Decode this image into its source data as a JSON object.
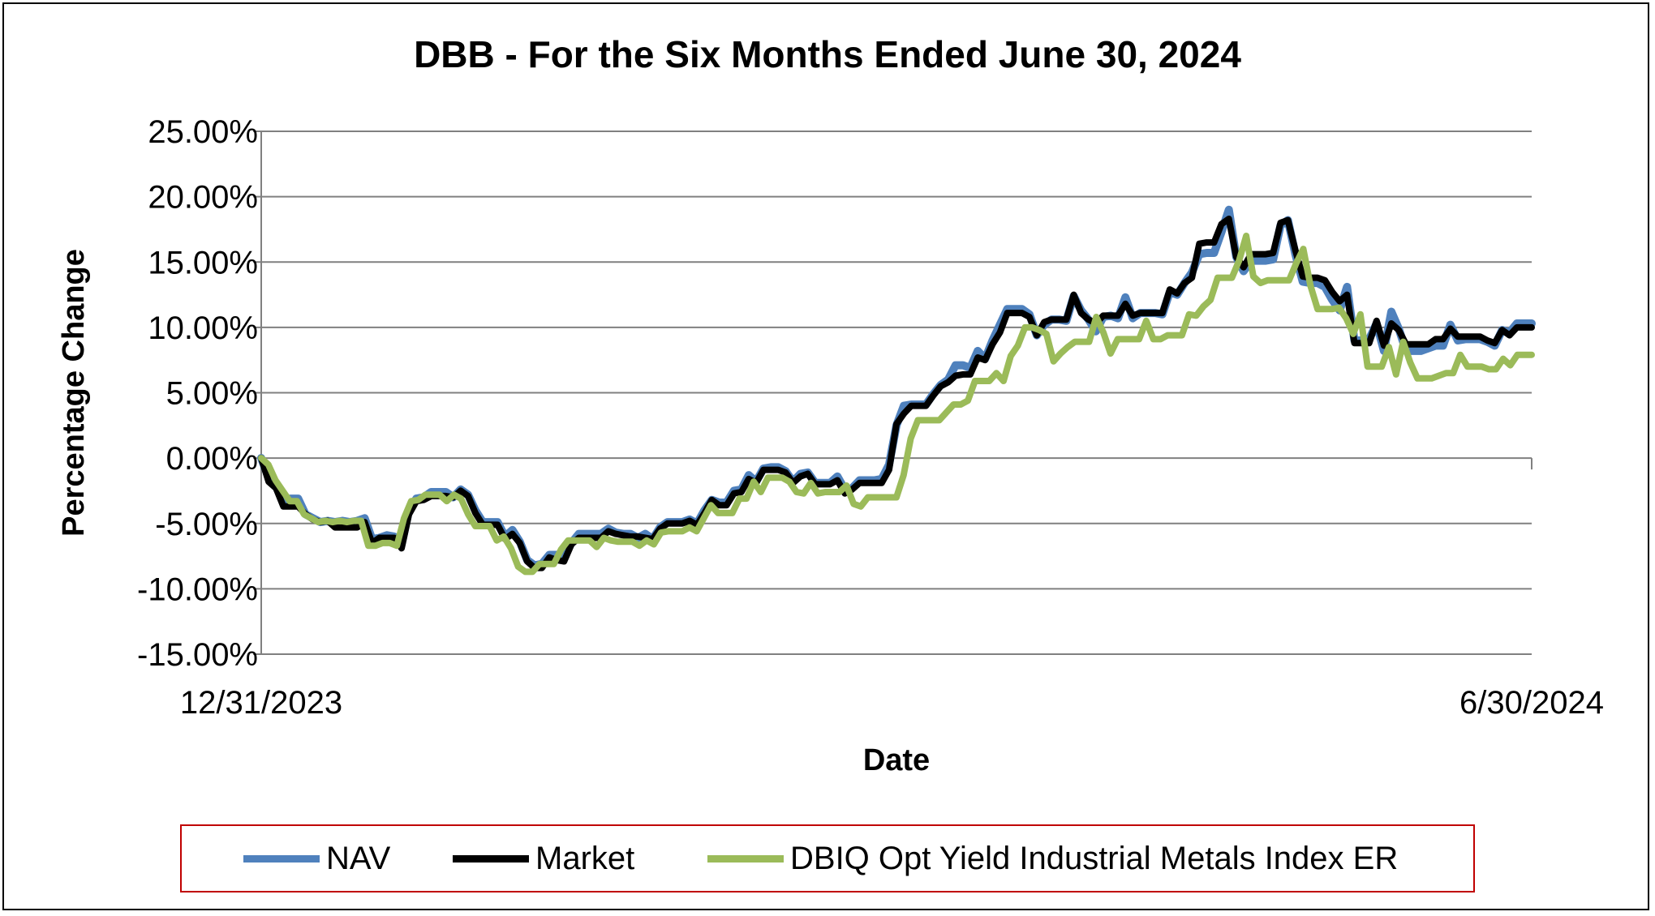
{
  "chart_data": {
    "type": "line",
    "title": "DBB - For the Six Months Ended June 30, 2024",
    "xlabel": "Date",
    "ylabel": "Percentage Change",
    "x_tick_labels": [
      "12/31/2023",
      "6/30/2024"
    ],
    "y_tick_labels": [
      "25.00%",
      "20.00%",
      "15.00%",
      "10.00%",
      "5.00%",
      "0.00%",
      "-5.00%",
      "-10.00%",
      "-15.00%"
    ],
    "ylim": [
      -15,
      25
    ],
    "y_step": 5,
    "grid": true,
    "legend_position": "bottom",
    "series": [
      {
        "name": "NAV",
        "color": "#4f81bd",
        "values": [
          0,
          -1.5,
          -2.2,
          -3.2,
          -3.1,
          -3.1,
          -4.3,
          -4.6,
          -4.9,
          -4.8,
          -4.9,
          -4.8,
          -4.9,
          -4.8,
          -4.6,
          -6.2,
          -6.1,
          -5.9,
          -6.0,
          -6.6,
          -4.0,
          -3.1,
          -3.0,
          -2.6,
          -2.6,
          -2.6,
          -3.0,
          -2.4,
          -2.8,
          -4.0,
          -4.9,
          -4.9,
          -4.9,
          -6.0,
          -5.5,
          -6.4,
          -7.8,
          -8.2,
          -8.1,
          -7.4,
          -7.4,
          -7.5,
          -6.5,
          -5.8,
          -5.8,
          -5.8,
          -5.8,
          -5.4,
          -5.7,
          -5.8,
          -5.8,
          -6.1,
          -5.8,
          -6.2,
          -5.3,
          -4.9,
          -4.9,
          -4.9,
          -4.7,
          -5.0,
          -4.0,
          -3.2,
          -3.4,
          -3.4,
          -2.5,
          -2.4,
          -1.3,
          -1.8,
          -0.8,
          -0.7,
          -0.7,
          -1.0,
          -1.8,
          -1.2,
          -1.1,
          -1.9,
          -1.9,
          -1.9,
          -1.4,
          -2.4,
          -2.3,
          -1.7,
          -1.7,
          -1.7,
          -1.6,
          -0.5,
          2.5,
          4.0,
          4.1,
          4.1,
          4.1,
          4.9,
          5.6,
          6.0,
          7.1,
          7.1,
          6.9,
          8.2,
          7.6,
          9.0,
          10.2,
          11.4,
          11.4,
          11.4,
          11.0,
          9.4,
          10.2,
          10.6,
          10.6,
          10.5,
          12.4,
          11.3,
          10.6,
          9.7,
          10.8,
          10.9,
          10.7,
          12.3,
          10.7,
          11.1,
          11.1,
          11.1,
          11.0,
          12.7,
          12.5,
          13.4,
          14.2,
          15.6,
          15.7,
          15.7,
          17.3,
          19.0,
          15.4,
          14.3,
          15.1,
          15.1,
          15.1,
          15.2,
          17.8,
          18.2,
          15.6,
          13.5,
          13.4,
          13.4,
          13.1,
          12.1,
          11.3,
          13.1,
          9.0,
          9.0,
          9.1,
          10.3,
          8.2,
          11.2,
          9.9,
          8.2,
          8.2,
          8.2,
          8.4,
          8.6,
          8.6,
          10.2,
          9.0,
          9.1,
          9.1,
          9.1,
          8.9,
          8.6,
          9.8,
          9.6,
          10.3,
          10.3,
          10.3
        ],
        "label": ""
      },
      {
        "name": "Market",
        "color": "#000000",
        "values": [
          0,
          -1.8,
          -2.3,
          -3.7,
          -3.7,
          -3.7,
          -4.3,
          -4.7,
          -4.9,
          -4.8,
          -5.3,
          -5.3,
          -5.3,
          -5.3,
          -4.9,
          -6.5,
          -6.1,
          -6.1,
          -6.1,
          -6.9,
          -4.3,
          -3.3,
          -3.2,
          -2.9,
          -2.9,
          -2.9,
          -3.0,
          -2.5,
          -2.9,
          -4.2,
          -5.1,
          -5.1,
          -5.1,
          -6.2,
          -5.8,
          -6.5,
          -7.9,
          -8.4,
          -8.4,
          -7.6,
          -7.8,
          -7.9,
          -6.6,
          -6.1,
          -6.1,
          -6.1,
          -6.1,
          -5.6,
          -5.8,
          -5.9,
          -6.0,
          -6.0,
          -6.1,
          -6.2,
          -5.4,
          -5.0,
          -5.0,
          -5.0,
          -4.8,
          -5.1,
          -4.2,
          -3.2,
          -3.6,
          -3.6,
          -2.7,
          -2.6,
          -1.6,
          -1.9,
          -0.9,
          -0.9,
          -0.9,
          -1.1,
          -1.9,
          -1.4,
          -1.2,
          -2.0,
          -2.0,
          -2.0,
          -1.7,
          -2.7,
          -2.4,
          -1.9,
          -1.9,
          -1.9,
          -1.9,
          -0.9,
          2.6,
          3.4,
          4.0,
          4.0,
          4.0,
          4.8,
          5.5,
          5.8,
          6.3,
          6.4,
          6.4,
          7.7,
          7.5,
          8.7,
          9.6,
          11.1,
          11.1,
          11.1,
          10.8,
          9.4,
          10.4,
          10.6,
          10.6,
          10.6,
          12.5,
          11.1,
          10.6,
          10.3,
          10.9,
          10.9,
          10.9,
          11.8,
          10.9,
          11.1,
          11.1,
          11.1,
          11.1,
          12.9,
          12.6,
          13.4,
          13.8,
          16.4,
          16.5,
          16.5,
          17.9,
          18.3,
          15.4,
          14.6,
          15.6,
          15.6,
          15.6,
          15.7,
          18.0,
          18.2,
          15.9,
          13.9,
          13.8,
          13.8,
          13.6,
          12.7,
          12.0,
          12.5,
          8.8,
          8.8,
          8.8,
          10.5,
          8.6,
          10.3,
          9.8,
          8.7,
          8.7,
          8.7,
          8.7,
          9.1,
          9.1,
          9.9,
          9.3,
          9.3,
          9.3,
          9.3,
          9.0,
          8.8,
          9.8,
          9.4,
          10.0,
          10.0,
          10.0
        ],
        "label": ""
      },
      {
        "name": "DBIQ Opt Yield Industrial Metals Index ER",
        "color": "#9bbb59",
        "values": [
          0,
          -0.5,
          -1.7,
          -2.5,
          -3.3,
          -3.3,
          -4.3,
          -4.6,
          -4.9,
          -4.8,
          -4.9,
          -4.8,
          -4.9,
          -4.8,
          -4.8,
          -6.7,
          -6.7,
          -6.5,
          -6.5,
          -6.7,
          -4.6,
          -3.3,
          -3.2,
          -2.8,
          -2.8,
          -2.8,
          -3.3,
          -2.8,
          -3.1,
          -4.3,
          -5.2,
          -5.2,
          -5.2,
          -6.3,
          -6.0,
          -6.9,
          -8.3,
          -8.7,
          -8.7,
          -8.1,
          -8.1,
          -8.1,
          -7.0,
          -6.3,
          -6.3,
          -6.3,
          -6.3,
          -6.8,
          -6.1,
          -6.3,
          -6.4,
          -6.4,
          -6.4,
          -6.7,
          -6.3,
          -6.6,
          -5.7,
          -5.6,
          -5.6,
          -5.6,
          -5.3,
          -5.6,
          -4.6,
          -3.6,
          -4.2,
          -4.2,
          -4.2,
          -3.1,
          -3.1,
          -1.8,
          -2.6,
          -1.5,
          -1.5,
          -1.5,
          -1.8,
          -2.6,
          -2.7,
          -1.9,
          -2.7,
          -2.6,
          -2.6,
          -2.6,
          -2.1,
          -3.5,
          -3.7,
          -3.0,
          -3.0,
          -3.0,
          -3.0,
          -3.0,
          -1.3,
          1.5,
          2.9,
          2.9,
          2.9,
          2.9,
          3.5,
          4.1,
          4.1,
          4.4,
          5.9,
          5.9,
          5.9,
          6.5,
          5.9,
          7.8,
          8.6,
          10.0,
          10.0,
          9.8,
          9.5,
          7.4,
          8.0,
          8.5,
          8.9,
          8.9,
          8.9,
          10.8,
          9.6,
          8.0,
          9.1,
          9.1,
          9.1,
          9.1,
          10.5,
          9.1,
          9.1,
          9.4,
          9.4,
          9.4,
          11.0,
          10.9,
          11.6,
          12.1,
          13.8,
          13.8,
          13.8,
          15.1,
          17.0,
          13.9,
          13.4,
          13.6,
          13.6,
          13.6,
          13.6,
          14.9,
          16.0,
          13.2,
          11.4,
          11.4,
          11.4,
          11.5,
          10.7,
          9.5,
          11.0,
          7.0,
          7.0,
          7.0,
          8.5,
          6.4,
          8.9,
          7.3,
          6.1,
          6.1,
          6.1,
          6.3,
          6.5,
          6.5,
          7.9,
          7.0,
          7.0,
          7.0,
          6.8,
          6.8,
          7.6,
          7.1,
          7.9,
          7.9,
          7.9
        ],
        "label": ""
      }
    ]
  }
}
